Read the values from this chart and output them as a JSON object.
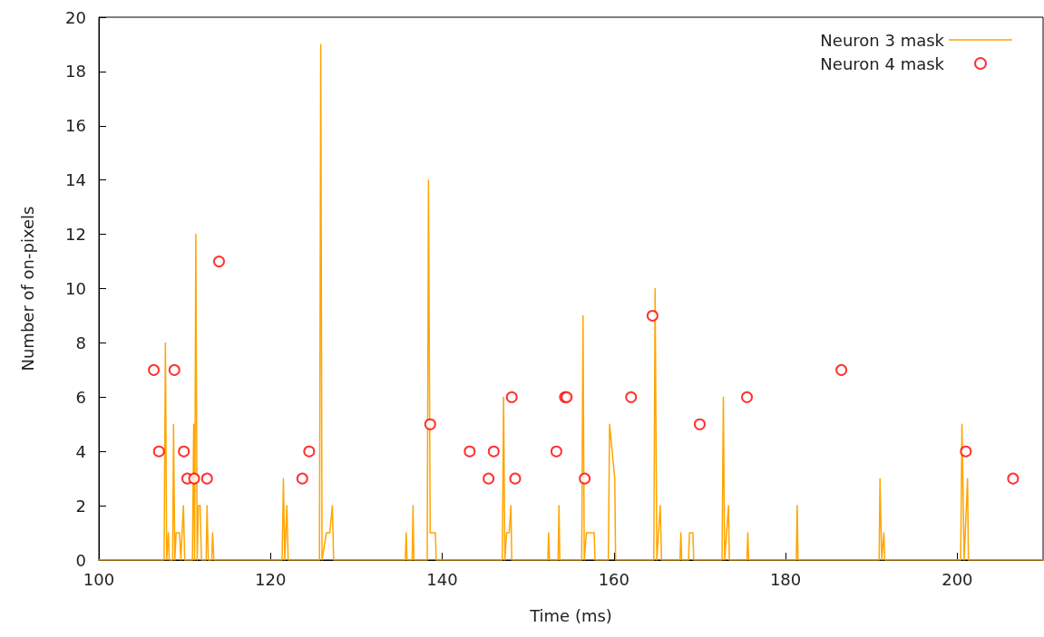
{
  "chart_data": {
    "type": "line",
    "xlabel": "Time (ms)",
    "ylabel": "Number of on-pixels",
    "xlim": [
      100,
      210
    ],
    "xticks": [
      100,
      120,
      140,
      160,
      180,
      200
    ],
    "ylim": [
      0,
      20
    ],
    "yticks": [
      0,
      2,
      4,
      6,
      8,
      10,
      12,
      14,
      16,
      18,
      20
    ],
    "grid": false,
    "legend": "top right",
    "series": [
      {
        "name": "Neuron 3 mask",
        "marker": "none",
        "line_style": "solid",
        "color": "#ffa500",
        "x": [
          100,
          107.6,
          107.75,
          107.9,
          108.1,
          108.2,
          108.6,
          108.7,
          108.85,
          109.0,
          109.4,
          109.55,
          109.85,
          110.0,
          110.9,
          111.05,
          111.15,
          111.3,
          111.45,
          111.6,
          111.8,
          111.95,
          112.5,
          112.6,
          112.75,
          113.15,
          113.25,
          113.4,
          121.35,
          121.5,
          121.65,
          121.9,
          122.05,
          125.7,
          125.85,
          126.0,
          126.5,
          126.9,
          127.2,
          127.35,
          135.7,
          135.8,
          135.9,
          136.5,
          136.6,
          136.7,
          138.25,
          138.4,
          138.6,
          139.2,
          139.3,
          147.0,
          147.15,
          147.3,
          147.5,
          147.8,
          148.0,
          148.1,
          152.3,
          152.4,
          152.5,
          153.5,
          153.6,
          153.7,
          156.25,
          156.4,
          156.55,
          156.8,
          157.7,
          157.8,
          159.35,
          159.5,
          160.1,
          160.2,
          164.65,
          164.8,
          165.0,
          165.4,
          165.55,
          167.7,
          167.8,
          167.9,
          168.7,
          168.8,
          169.2,
          169.3,
          172.6,
          172.75,
          172.9,
          173.35,
          173.45,
          175.5,
          175.6,
          175.7,
          181.25,
          181.35,
          181.45,
          190.9,
          191.0,
          191.2,
          191.45,
          191.55,
          200.4,
          200.55,
          200.8,
          201.2,
          201.3,
          210
        ],
        "values": [
          0,
          0,
          8,
          0,
          1,
          0,
          0,
          5,
          0,
          1,
          1,
          0,
          2,
          0,
          0,
          5,
          0,
          12,
          0,
          2,
          2,
          0,
          0,
          2,
          0,
          0,
          1,
          0,
          0,
          3,
          0,
          2,
          0,
          0,
          19,
          0,
          1,
          1,
          2,
          0,
          0,
          1,
          0,
          0,
          2,
          0,
          0,
          14,
          1,
          1,
          0,
          0,
          6,
          0,
          1,
          1,
          2,
          0,
          0,
          1,
          0,
          0,
          2,
          0,
          0,
          9,
          0,
          1,
          1,
          0,
          0,
          5,
          3,
          0,
          0,
          10,
          0,
          2,
          0,
          0,
          1,
          0,
          0,
          1,
          1,
          0,
          0,
          6,
          0,
          2,
          0,
          0,
          1,
          0,
          0,
          2,
          0,
          0,
          3,
          0,
          1,
          0,
          0,
          5,
          0,
          3,
          0,
          0
        ]
      },
      {
        "name": "Neuron 4 mask",
        "type": "scatter",
        "marker": "circle",
        "color": "#ff0000",
        "x": [
          106.4,
          107.0,
          108.8,
          109.9,
          110.3,
          111.1,
          112.6,
          114.0,
          123.7,
          124.5,
          138.6,
          143.2,
          145.4,
          146.0,
          148.1,
          148.5,
          153.3,
          154.3,
          154.5,
          156.6,
          162.0,
          164.5,
          170.0,
          175.5,
          186.5,
          201.0,
          206.5
        ],
        "values": [
          7,
          4,
          7,
          4,
          3,
          3,
          3,
          11,
          3,
          4,
          5,
          4,
          3,
          4,
          6,
          3,
          4,
          6,
          6,
          3,
          6,
          9,
          5,
          6,
          7,
          4,
          3
        ]
      }
    ]
  }
}
